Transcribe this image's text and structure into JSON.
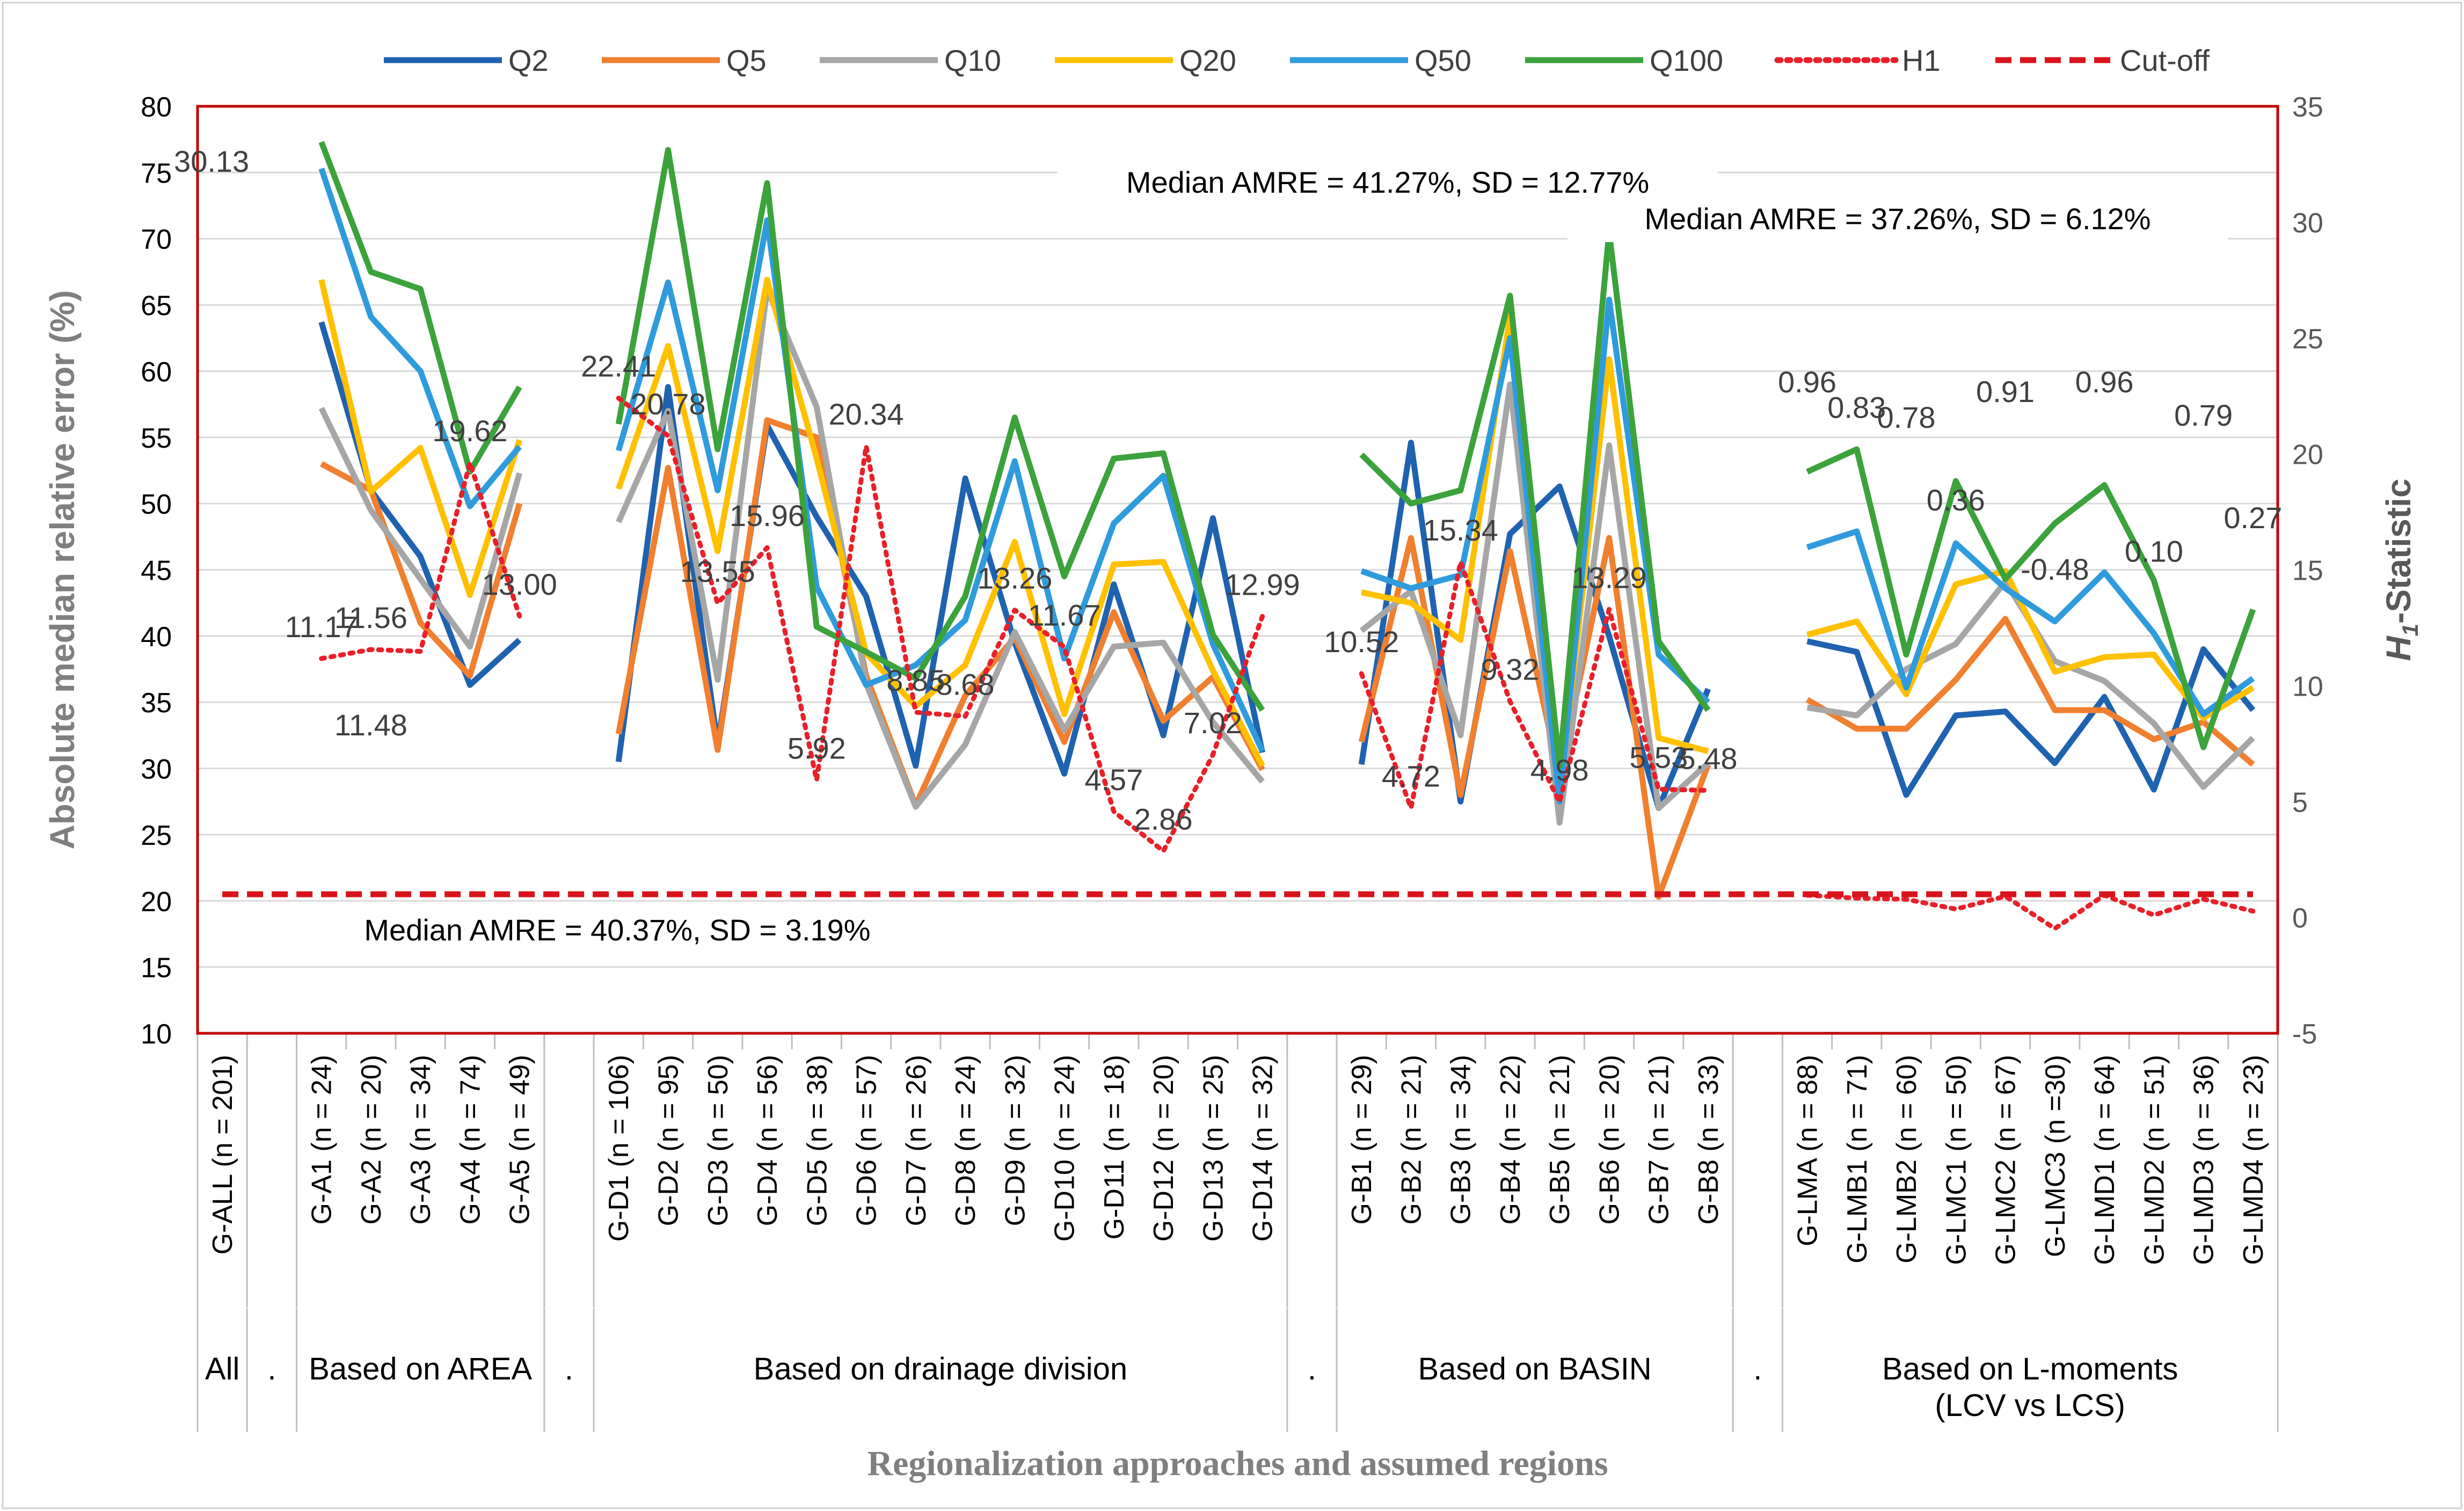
{
  "chart_data": {
    "type": "line",
    "xlabel": "Regionalization approaches and assumed regions",
    "ylabel": "Absolute median relative error (%)",
    "y2label_prefix": "H",
    "y2label_sub": "1",
    "y2label_suffix": "-Statistic",
    "ylim": [
      10,
      80
    ],
    "y_ticks": [
      "10",
      "15",
      "20",
      "25",
      "30",
      "35",
      "40",
      "45",
      "50",
      "55",
      "60",
      "65",
      "70",
      "75",
      "80"
    ],
    "y2lim": [
      -5,
      35
    ],
    "y2_ticks": [
      "-5",
      "0",
      "5",
      "10",
      "15",
      "20",
      "25",
      "30",
      "35"
    ],
    "grid": true,
    "legend_position": "top",
    "slots": [
      "G-ALL (n = 201)",
      ".",
      "G-A1 (n = 24)",
      "G-A2 (n = 20)",
      "G-A3 (n = 34)",
      "G-A4 (n = 74)",
      "G-A5 (n = 49)",
      ".",
      "G-D1 (n = 106)",
      "G-D2 (n = 95)",
      "G-D3 (n = 50)",
      "G-D4 (n = 56)",
      "G-D5 (n = 38)",
      "G-D6 (n = 57)",
      "G-D7 (n = 26)",
      "G-D8 (n = 24)",
      "G-D9 (n = 32)",
      "G-D10 (n = 24)",
      "G-D11 (n = 18)",
      "G-D12 (n = 20)",
      "G-D13 (n = 25)",
      "G-D14 (n = 32)",
      ".",
      "G-B1 (n = 29)",
      "G-B2 (n = 21)",
      "G-B3 (n = 34)",
      "G-B4 (n = 22)",
      "G-B5 (n = 21)",
      "G-B6 (n = 20)",
      "G-B7 (n = 21)",
      "G-B8 (n = 33)",
      ".",
      "G-LMA (n = 88)",
      "G-LMB1 (n = 71)",
      "G-LMB2 (n = 60)",
      "G-LMC1 (n = 50)",
      "G-LMC2 (n = 67)",
      "G-LMC3 (n =30)",
      "G-LMD1 (n = 64)",
      "G-LMD2 (n = 51)",
      "G-LMD3 (n = 36)",
      "G-LMD4 (n = 23)"
    ],
    "groups": [
      {
        "label": "All",
        "start": 0,
        "end": 0
      },
      {
        "label": ".",
        "start": 1,
        "end": 1
      },
      {
        "label": "Based on AREA",
        "start": 2,
        "end": 6
      },
      {
        "label": ".",
        "start": 7,
        "end": 7
      },
      {
        "label": "Based on drainage division",
        "start": 8,
        "end": 21
      },
      {
        "label": ".",
        "start": 22,
        "end": 22
      },
      {
        "label": "Based on BASIN",
        "start": 23,
        "end": 30
      },
      {
        "label": ".",
        "start": 31,
        "end": 31
      },
      {
        "label": "Based on L-moments (LCV vs LCS)",
        "start": 32,
        "end": 41
      }
    ],
    "segments": [
      [
        2,
        6
      ],
      [
        8,
        21
      ],
      [
        23,
        30
      ],
      [
        32,
        41
      ]
    ],
    "series": [
      {
        "name": "Q2",
        "color": "#1f62b0",
        "style": "solid",
        "values": [
          null,
          null,
          63.7,
          51,
          46,
          36.3,
          39.7,
          null,
          30.5,
          58.8,
          31.8,
          55.9,
          49,
          43,
          30.2,
          51.9,
          39.5,
          29.6,
          43.9,
          32.5,
          48.9,
          31.2,
          null,
          30.3,
          54.6,
          27.5,
          47.7,
          51.3,
          40,
          27,
          36,
          null,
          39.6,
          38.8,
          28,
          34,
          34.3,
          30.4,
          35.4,
          28.4,
          39,
          34.4
        ]
      },
      {
        "name": "Q5",
        "color": "#f07f2f",
        "style": "solid",
        "values": [
          null,
          null,
          53,
          51,
          41,
          37,
          50,
          null,
          32.6,
          52.7,
          31.4,
          56.3,
          55,
          37,
          27.2,
          35.5,
          39.9,
          32,
          41.8,
          33.6,
          36.9,
          29.9,
          null,
          32,
          47.4,
          28,
          46.4,
          29.4,
          47.4,
          20.3,
          30.3,
          null,
          35.2,
          33,
          33,
          36.7,
          41.3,
          34.4,
          34.4,
          32.2,
          33.5,
          30.3
        ]
      },
      {
        "name": "Q10",
        "color": "#a6a6a6",
        "style": "solid",
        "values": [
          null,
          null,
          57.2,
          49.5,
          44.3,
          39.2,
          52.3,
          null,
          48.6,
          57,
          36.7,
          66.2,
          57.3,
          36.4,
          27.1,
          31.8,
          40.3,
          32.9,
          39.2,
          39.5,
          33.5,
          29,
          null,
          40.4,
          43.4,
          32.5,
          59,
          25.9,
          54.4,
          27,
          30.4,
          null,
          34.6,
          34,
          37.5,
          39.4,
          44.1,
          38.1,
          36.6,
          33.4,
          28.6,
          32.3
        ]
      },
      {
        "name": "Q20",
        "color": "#ffc000",
        "style": "solid",
        "values": [
          null,
          null,
          66.9,
          50.9,
          54.2,
          43.1,
          54.8,
          null,
          51.1,
          61.9,
          46.4,
          66.9,
          53.4,
          38.7,
          34.7,
          37.8,
          47.1,
          34.1,
          45.4,
          45.6,
          37.4,
          30.2,
          null,
          43.3,
          42.5,
          39.7,
          64.1,
          28.1,
          60.9,
          32.3,
          31.3,
          null,
          40.1,
          41.1,
          35.6,
          43.9,
          44.9,
          37.3,
          38.4,
          38.6,
          33.8,
          36.1
        ]
      },
      {
        "name": "Q50",
        "color": "#2f9bdc",
        "style": "solid",
        "values": [
          null,
          null,
          75.3,
          64.1,
          60,
          49.8,
          54.3,
          null,
          54,
          66.7,
          51,
          71.4,
          43.7,
          36.3,
          37.8,
          41.2,
          53.2,
          38.3,
          48.5,
          52.1,
          39.4,
          31.3,
          null,
          44.9,
          43.6,
          44.6,
          62.5,
          27.5,
          65.4,
          38.6,
          35,
          null,
          46.7,
          47.9,
          36.1,
          47,
          43.6,
          41.1,
          44.8,
          40.2,
          34.1,
          36.8
        ]
      },
      {
        "name": "Q100",
        "color": "#3ca23c",
        "style": "solid",
        "values": [
          null,
          null,
          77.3,
          67.5,
          66.2,
          52.4,
          58.8,
          null,
          56,
          76.7,
          54.1,
          74.2,
          40.7,
          38.8,
          36.8,
          43,
          56.5,
          44.5,
          53.4,
          53.8,
          40.1,
          34.4,
          null,
          53.7,
          50,
          51,
          65.7,
          30.2,
          70.5,
          39.6,
          34.4,
          null,
          52.4,
          54.1,
          38.6,
          51.7,
          44.3,
          48.5,
          51.4,
          44.2,
          31.6,
          42
        ]
      },
      {
        "name": "H1",
        "color": "#e8202a",
        "style": "dotted",
        "values": [
          null,
          null,
          11.17,
          11.56,
          11.48,
          19.62,
          13.0,
          null,
          22.41,
          20.78,
          13.55,
          15.96,
          5.92,
          20.34,
          8.85,
          8.68,
          13.26,
          11.67,
          4.57,
          2.86,
          7.02,
          12.99,
          null,
          10.52,
          4.72,
          15.34,
          9.32,
          4.98,
          13.29,
          5.53,
          5.48,
          null,
          0.96,
          0.83,
          0.78,
          0.36,
          0.91,
          -0.48,
          0.96,
          0.1,
          0.79,
          0.27
        ]
      },
      {
        "name": "Cut-off",
        "color": "#d9131b",
        "style": "dashed",
        "values": [
          1,
          1,
          1,
          1,
          1,
          1,
          1,
          1,
          1,
          1,
          1,
          1,
          1,
          1,
          1,
          1,
          1,
          1,
          1,
          1,
          1,
          1,
          1,
          1,
          1,
          1,
          1,
          1,
          1,
          1,
          1,
          1,
          1,
          1,
          1,
          1,
          1,
          1,
          1,
          1,
          1,
          1
        ]
      }
    ],
    "h1_labels": [
      {
        "slot": 0,
        "text": "30.13"
      },
      {
        "slot": 2,
        "text": "11.17"
      },
      {
        "slot": 3,
        "text": "11.56"
      },
      {
        "slot": 3,
        "text": "11.48"
      },
      {
        "slot": 5,
        "text": "19.62"
      },
      {
        "slot": 6,
        "text": "13.00"
      },
      {
        "slot": 8,
        "text": "22.41"
      },
      {
        "slot": 9,
        "text": "20.78"
      },
      {
        "slot": 10,
        "text": "13.55"
      },
      {
        "slot": 11,
        "text": "15.96"
      },
      {
        "slot": 12,
        "text": "5.92"
      },
      {
        "slot": 13,
        "text": "20.34"
      },
      {
        "slot": 14,
        "text": "8.85"
      },
      {
        "slot": 15,
        "text": "8.68"
      },
      {
        "slot": 16,
        "text": "13.26"
      },
      {
        "slot": 17,
        "text": "11.67"
      },
      {
        "slot": 18,
        "text": "4.57"
      },
      {
        "slot": 19,
        "text": "2.86"
      },
      {
        "slot": 20,
        "text": "7.02"
      },
      {
        "slot": 21,
        "text": "12.99"
      },
      {
        "slot": 23,
        "text": "10.52"
      },
      {
        "slot": 24,
        "text": "4.72"
      },
      {
        "slot": 25,
        "text": "15.34"
      },
      {
        "slot": 26,
        "text": "9.32"
      },
      {
        "slot": 27,
        "text": "4.98"
      },
      {
        "slot": 28,
        "text": "13.29"
      },
      {
        "slot": 29,
        "text": "5.53"
      },
      {
        "slot": 30,
        "text": "5.48"
      },
      {
        "slot": 32,
        "text": "0.96"
      },
      {
        "slot": 33,
        "text": "0.83"
      },
      {
        "slot": 34,
        "text": "0.78"
      },
      {
        "slot": 35,
        "text": "0.36"
      },
      {
        "slot": 36,
        "text": "0.91"
      },
      {
        "slot": 37,
        "text": "-0.48"
      },
      {
        "slot": 38,
        "text": "0.96"
      },
      {
        "slot": 39,
        "text": "0.10"
      },
      {
        "slot": 40,
        "text": "0.79"
      },
      {
        "slot": 41,
        "text": "0.27"
      }
    ],
    "annotations": [
      "Median AMRE = 41.27%, SD = 12.77%",
      "Median AMRE = 37.26%, SD = 6.12%",
      "Median AMRE = 40.37%, SD = 3.19%"
    ]
  }
}
